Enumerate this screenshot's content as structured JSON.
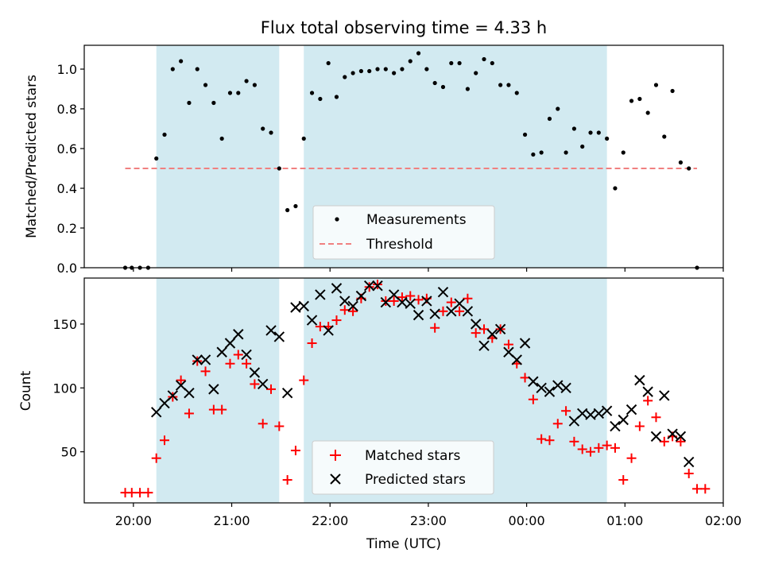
{
  "chart_data": [
    {
      "type": "scatter",
      "title": "Flux total observing time = 4.33 h",
      "ylabel": "Matched/Predicted stars",
      "xlim": [
        "19:30",
        "02:00"
      ],
      "ylim": [
        0,
        1.12
      ],
      "yticks": [
        "0.0",
        "0.2",
        "0.4",
        "0.6",
        "0.8",
        "1.0"
      ],
      "shaded_intervals": [
        [
          "20:14",
          "21:29"
        ],
        [
          "21:44",
          "00:49"
        ]
      ],
      "shade_color": "#add8e6",
      "threshold": {
        "name": "Threshold",
        "value": 0.5,
        "from": "19:55",
        "to": "01:44",
        "color": "#f08080"
      },
      "series": [
        {
          "name": "Measurements",
          "color": "#000000",
          "points": [
            [
              "19:55",
              0.0
            ],
            [
              "19:59",
              0.0
            ],
            [
              "20:04",
              0.0
            ],
            [
              "20:09",
              0.0
            ],
            [
              "20:14",
              0.55
            ],
            [
              "20:19",
              0.67
            ],
            [
              "20:24",
              1.0
            ],
            [
              "20:29",
              1.04
            ],
            [
              "20:34",
              0.83
            ],
            [
              "20:39",
              1.0
            ],
            [
              "20:44",
              0.92
            ],
            [
              "20:49",
              0.83
            ],
            [
              "20:54",
              0.65
            ],
            [
              "20:59",
              0.88
            ],
            [
              "21:04",
              0.88
            ],
            [
              "21:09",
              0.94
            ],
            [
              "21:14",
              0.92
            ],
            [
              "21:19",
              0.7
            ],
            [
              "21:24",
              0.68
            ],
            [
              "21:29",
              0.5
            ],
            [
              "21:34",
              0.29
            ],
            [
              "21:39",
              0.31
            ],
            [
              "21:44",
              0.65
            ],
            [
              "21:49",
              0.88
            ],
            [
              "21:54",
              0.85
            ],
            [
              "21:59",
              1.03
            ],
            [
              "22:04",
              0.86
            ],
            [
              "22:09",
              0.96
            ],
            [
              "22:14",
              0.98
            ],
            [
              "22:19",
              0.99
            ],
            [
              "22:24",
              0.99
            ],
            [
              "22:29",
              1.0
            ],
            [
              "22:34",
              1.0
            ],
            [
              "22:39",
              0.98
            ],
            [
              "22:44",
              1.0
            ],
            [
              "22:49",
              1.04
            ],
            [
              "22:54",
              1.08
            ],
            [
              "22:59",
              1.0
            ],
            [
              "23:04",
              0.93
            ],
            [
              "23:09",
              0.91
            ],
            [
              "23:14",
              1.03
            ],
            [
              "23:19",
              1.03
            ],
            [
              "23:24",
              0.9
            ],
            [
              "23:29",
              0.98
            ],
            [
              "23:34",
              1.05
            ],
            [
              "23:39",
              1.03
            ],
            [
              "23:44",
              0.92
            ],
            [
              "23:49",
              0.92
            ],
            [
              "23:54",
              0.88
            ],
            [
              "23:59",
              0.67
            ],
            [
              "00:04",
              0.57
            ],
            [
              "00:09",
              0.58
            ],
            [
              "00:14",
              0.75
            ],
            [
              "00:19",
              0.8
            ],
            [
              "00:24",
              0.58
            ],
            [
              "00:29",
              0.7
            ],
            [
              "00:34",
              0.61
            ],
            [
              "00:39",
              0.68
            ],
            [
              "00:44",
              0.68
            ],
            [
              "00:49",
              0.65
            ],
            [
              "00:54",
              0.4
            ],
            [
              "00:59",
              0.58
            ],
            [
              "01:04",
              0.84
            ],
            [
              "01:09",
              0.85
            ],
            [
              "01:14",
              0.78
            ],
            [
              "01:19",
              0.92
            ],
            [
              "01:24",
              0.66
            ],
            [
              "01:29",
              0.89
            ],
            [
              "01:34",
              0.53
            ],
            [
              "01:39",
              0.5
            ],
            [
              "01:44",
              0.0
            ]
          ]
        }
      ],
      "legend": "lower-center"
    },
    {
      "type": "scatter",
      "xlabel": "Time (UTC)",
      "ylabel": "Count",
      "xlim": [
        "19:30",
        "02:00"
      ],
      "ylim": [
        10,
        186
      ],
      "xticks": [
        "20:00",
        "21:00",
        "22:00",
        "23:00",
        "00:00",
        "01:00",
        "02:00"
      ],
      "yticks": [
        "50",
        "100",
        "150"
      ],
      "shaded_intervals": [
        [
          "20:14",
          "21:29"
        ],
        [
          "21:44",
          "00:49"
        ]
      ],
      "shade_color": "#add8e6",
      "series": [
        {
          "name": "Matched stars",
          "color": "#ff0000",
          "marker": "plus",
          "points": [
            [
              "19:55",
              18
            ],
            [
              "19:59",
              18
            ],
            [
              "20:04",
              18
            ],
            [
              "20:09",
              18
            ],
            [
              "20:14",
              45
            ],
            [
              "20:19",
              59
            ],
            [
              "20:24",
              93
            ],
            [
              "20:29",
              106
            ],
            [
              "20:34",
              80
            ],
            [
              "20:39",
              121
            ],
            [
              "20:44",
              113
            ],
            [
              "20:49",
              83
            ],
            [
              "20:54",
              83
            ],
            [
              "20:59",
              119
            ],
            [
              "21:04",
              126
            ],
            [
              "21:09",
              119
            ],
            [
              "21:14",
              103
            ],
            [
              "21:19",
              72
            ],
            [
              "21:24",
              99
            ],
            [
              "21:29",
              70
            ],
            [
              "21:34",
              28
            ],
            [
              "21:39",
              51
            ],
            [
              "21:44",
              106
            ],
            [
              "21:49",
              135
            ],
            [
              "21:54",
              148
            ],
            [
              "21:59",
              148
            ],
            [
              "22:04",
              153
            ],
            [
              "22:09",
              161
            ],
            [
              "22:14",
              160
            ],
            [
              "22:19",
              170
            ],
            [
              "22:24",
              179
            ],
            [
              "22:29",
              181
            ],
            [
              "22:34",
              168
            ],
            [
              "22:39",
              168
            ],
            [
              "22:44",
              171
            ],
            [
              "22:49",
              172
            ],
            [
              "22:54",
              169
            ],
            [
              "22:59",
              170
            ],
            [
              "23:04",
              147
            ],
            [
              "23:09",
              160
            ],
            [
              "23:14",
              167
            ],
            [
              "23:19",
              160
            ],
            [
              "23:24",
              170
            ],
            [
              "23:29",
              143
            ],
            [
              "23:34",
              146
            ],
            [
              "23:39",
              139
            ],
            [
              "23:44",
              146
            ],
            [
              "23:49",
              134
            ],
            [
              "23:54",
              119
            ],
            [
              "23:59",
              108
            ],
            [
              "00:04",
              91
            ],
            [
              "00:09",
              60
            ],
            [
              "00:14",
              59
            ],
            [
              "00:19",
              72
            ],
            [
              "00:24",
              82
            ],
            [
              "00:29",
              58
            ],
            [
              "00:34",
              52
            ],
            [
              "00:39",
              50
            ],
            [
              "00:44",
              53
            ],
            [
              "00:49",
              55
            ],
            [
              "00:54",
              53
            ],
            [
              "00:59",
              28
            ],
            [
              "01:04",
              45
            ],
            [
              "01:09",
              70
            ],
            [
              "01:14",
              90
            ],
            [
              "01:19",
              77
            ],
            [
              "01:24",
              58
            ],
            [
              "01:29",
              62
            ],
            [
              "01:34",
              58
            ],
            [
              "01:39",
              33
            ],
            [
              "01:44",
              21
            ],
            [
              "01:49",
              21
            ]
          ]
        },
        {
          "name": "Predicted stars",
          "color": "#000000",
          "marker": "x",
          "points": [
            [
              "20:14",
              81
            ],
            [
              "20:19",
              88
            ],
            [
              "20:24",
              94
            ],
            [
              "20:29",
              102
            ],
            [
              "20:34",
              96
            ],
            [
              "20:39",
              122
            ],
            [
              "20:44",
              122
            ],
            [
              "20:49",
              99
            ],
            [
              "20:54",
              128
            ],
            [
              "20:59",
              135
            ],
            [
              "21:04",
              142
            ],
            [
              "21:09",
              126
            ],
            [
              "21:14",
              112
            ],
            [
              "21:19",
              103
            ],
            [
              "21:24",
              145
            ],
            [
              "21:29",
              140
            ],
            [
              "21:34",
              96
            ],
            [
              "21:39",
              163
            ],
            [
              "21:44",
              164
            ],
            [
              "21:49",
              153
            ],
            [
              "21:54",
              173
            ],
            [
              "21:59",
              145
            ],
            [
              "22:04",
              178
            ],
            [
              "22:09",
              168
            ],
            [
              "22:14",
              164
            ],
            [
              "22:19",
              172
            ],
            [
              "22:24",
              180
            ],
            [
              "22:29",
              180
            ],
            [
              "22:34",
              167
            ],
            [
              "22:39",
              173
            ],
            [
              "22:44",
              167
            ],
            [
              "22:49",
              166
            ],
            [
              "22:54",
              157
            ],
            [
              "22:59",
              168
            ],
            [
              "23:04",
              158
            ],
            [
              "23:09",
              175
            ],
            [
              "23:14",
              160
            ],
            [
              "23:19",
              166
            ],
            [
              "23:24",
              160
            ],
            [
              "23:29",
              150
            ],
            [
              "23:34",
              133
            ],
            [
              "23:39",
              142
            ],
            [
              "23:44",
              146
            ],
            [
              "23:49",
              128
            ],
            [
              "23:54",
              122
            ],
            [
              "23:59",
              135
            ],
            [
              "00:04",
              105
            ],
            [
              "00:09",
              100
            ],
            [
              "00:14",
              97
            ],
            [
              "00:19",
              102
            ],
            [
              "00:24",
              100
            ],
            [
              "00:29",
              74
            ],
            [
              "00:34",
              80
            ],
            [
              "00:39",
              79
            ],
            [
              "00:44",
              80
            ],
            [
              "00:49",
              82
            ],
            [
              "00:54",
              70
            ],
            [
              "00:59",
              75
            ],
            [
              "01:04",
              83
            ],
            [
              "01:09",
              106
            ],
            [
              "01:14",
              97
            ],
            [
              "01:19",
              62
            ],
            [
              "01:24",
              94
            ],
            [
              "01:29",
              64
            ],
            [
              "01:34",
              62
            ],
            [
              "01:39",
              42
            ]
          ]
        }
      ],
      "legend": "lower-center"
    }
  ]
}
